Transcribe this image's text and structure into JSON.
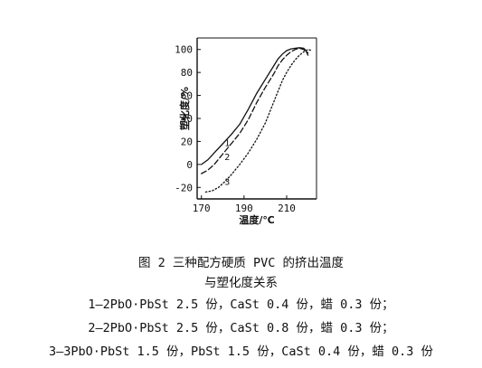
{
  "chart_data": {
    "type": "line",
    "ylabel": "塑化度/%",
    "xlabel": "温度/℃",
    "xlim": [
      168,
      224
    ],
    "ylim": [
      -30,
      110
    ],
    "x_ticks": [
      170,
      190,
      210
    ],
    "y_ticks": [
      -20,
      0,
      20,
      40,
      60,
      80,
      100
    ],
    "grid": false,
    "series": [
      {
        "name": "1",
        "style": "solid",
        "x": [
          170,
          173,
          176,
          180,
          184,
          188,
          192,
          196,
          200,
          204,
          206,
          208,
          210,
          212,
          214,
          216,
          218,
          219,
          220
        ],
        "y": [
          0,
          4,
          10,
          18,
          26,
          35,
          48,
          62,
          74,
          86,
          92,
          96,
          99,
          100.5,
          101,
          101.5,
          101,
          99,
          95
        ]
      },
      {
        "name": "2",
        "style": "dashed",
        "x": [
          170,
          173,
          176,
          180,
          184,
          188,
          192,
          196,
          200,
          204,
          206,
          208,
          210,
          212,
          214,
          216,
          218,
          220
        ],
        "y": [
          -8,
          -5,
          0,
          9,
          18,
          27,
          39,
          54,
          67,
          79,
          86,
          91,
          95,
          98,
          100,
          101,
          100,
          97
        ]
      },
      {
        "name": "3",
        "style": "dotted",
        "x": [
          172,
          175,
          178,
          181,
          184,
          188,
          192,
          196,
          200,
          203,
          206,
          208,
          210,
          212,
          214,
          216,
          218,
          220,
          222
        ],
        "y": [
          -24,
          -23,
          -20,
          -15,
          -9,
          0,
          10,
          22,
          36,
          50,
          64,
          73,
          80,
          86,
          91,
          95,
          98,
          100,
          99
        ]
      }
    ]
  },
  "caption": {
    "title_line1": "图 2   三种配方硬质 PVC 的挤出温度",
    "title_line2": "与塑化度关系",
    "note1": "1—2PbO·PbSt 2.5 份，CaSt 0.4 份，蜡 0.3 份；",
    "note2": "2—2PbO·PbSt 2.5 份，CaSt 0.8 份，蜡 0.3 份；",
    "note3": "3—3PbO·PbSt 1.5 份，PbSt 1.5 份，CaSt 0.4 份，蜡 0.3 份"
  }
}
